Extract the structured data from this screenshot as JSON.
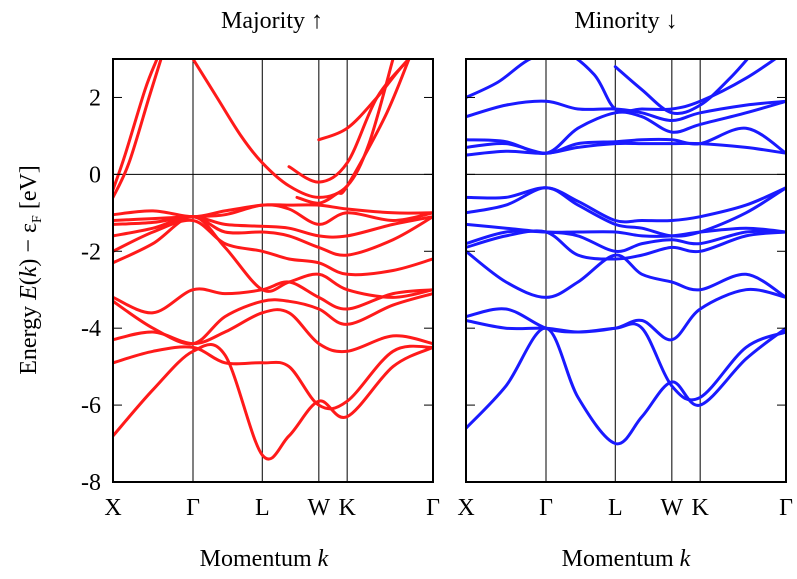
{
  "colors": {
    "majority": "#ff1a1a",
    "minority": "#1a1aff",
    "axis": "#000000",
    "grid": "#000000"
  },
  "chart_data": [
    {
      "type": "line",
      "title": "Majority ↑",
      "ylabel_parts": {
        "pre": "Energy ",
        "e": "E",
        "open": "(",
        "k": "k",
        "close": ")",
        "minus": " − ε",
        "sub": "F",
        "unit": " [eV]"
      },
      "xlabel_parts": {
        "text": "Momentum ",
        "k": "k"
      },
      "ylim": [
        -8,
        3
      ],
      "yticks": [
        -8,
        -6,
        -4,
        -2,
        0,
        2
      ],
      "kpoints": [
        {
          "label": "X",
          "x": 0
        },
        {
          "label": "Γ",
          "x": 1
        },
        {
          "label": "L",
          "x": 1.866
        },
        {
          "label": "W",
          "x": 2.573
        },
        {
          "label": "K",
          "x": 2.927
        },
        {
          "label": "Γ",
          "x": 4
        }
      ],
      "color": "#ff1a1a",
      "series": [
        {
          "x": [
            0,
            0.5,
            1,
            1.4,
            1.866,
            2.2,
            2.573,
            2.927,
            3.5,
            4
          ],
          "values": [
            -6.8,
            -5.6,
            -4.6,
            -4.7,
            -7.3,
            -6.8,
            -5.9,
            -6.3,
            -5.0,
            -4.5
          ]
        },
        {
          "x": [
            0,
            0.5,
            1,
            1.4,
            1.866,
            2.2,
            2.573,
            2.927,
            3.5,
            4
          ],
          "values": [
            -4.9,
            -4.6,
            -4.5,
            -4.9,
            -4.9,
            -5.0,
            -6.0,
            -5.9,
            -4.6,
            -4.5
          ]
        },
        {
          "x": [
            0,
            0.5,
            1,
            1.4,
            1.866,
            2.2,
            2.573,
            2.927,
            3.5,
            4
          ],
          "values": [
            -4.3,
            -4.1,
            -4.4,
            -4.1,
            -3.6,
            -3.6,
            -4.4,
            -4.6,
            -4.2,
            -4.4
          ]
        },
        {
          "x": [
            0,
            0.5,
            1,
            1.4,
            1.866,
            2.2,
            2.573,
            2.927,
            3.5,
            4
          ],
          "values": [
            -3.3,
            -4.0,
            -4.4,
            -3.7,
            -3.3,
            -3.3,
            -3.5,
            -3.9,
            -3.4,
            -3.1
          ]
        },
        {
          "x": [
            0,
            0.5,
            1,
            1.4,
            1.866,
            2.2,
            2.573,
            2.927,
            3.5,
            4
          ],
          "values": [
            -3.2,
            -3.6,
            -3.0,
            -3.1,
            -3.0,
            -2.8,
            -3.2,
            -3.5,
            -3.1,
            -3.0
          ]
        },
        {
          "x": [
            0,
            0.5,
            1,
            1.4,
            1.866,
            2.2,
            2.573,
            2.927,
            3.5,
            4
          ],
          "values": [
            -2.3,
            -1.8,
            -1.1,
            -1.9,
            -3.0,
            -2.8,
            -2.6,
            -3.0,
            -3.2,
            -3.0
          ]
        },
        {
          "x": [
            0,
            0.5,
            1,
            1.4,
            1.866,
            2.2,
            2.573,
            2.927,
            3.5,
            4
          ],
          "values": [
            -2.0,
            -1.5,
            -1.2,
            -1.8,
            -2.0,
            -2.2,
            -2.3,
            -2.6,
            -2.5,
            -2.2
          ]
        },
        {
          "x": [
            0,
            0.5,
            1,
            1.4,
            1.866,
            2.2,
            2.573,
            2.927,
            3.5,
            4
          ],
          "values": [
            -1.6,
            -1.4,
            -1.1,
            -1.5,
            -1.5,
            -1.6,
            -1.9,
            -2.1,
            -1.7,
            -1.1
          ]
        },
        {
          "x": [
            0,
            0.5,
            1,
            1.4,
            1.866,
            2.2,
            2.573,
            2.927,
            3.5,
            4
          ],
          "values": [
            -1.3,
            -1.25,
            -1.1,
            -1.3,
            -1.35,
            -1.4,
            -1.6,
            -1.6,
            -1.3,
            -1.1
          ]
        },
        {
          "x": [
            0,
            0.5,
            1,
            1.4,
            1.866,
            2.2,
            2.573,
            2.927,
            3.5,
            4
          ],
          "values": [
            -1.2,
            -1.15,
            -1.1,
            -1.05,
            -0.8,
            -0.9,
            -1.3,
            -1.0,
            -1.2,
            -1.0
          ]
        },
        {
          "x": [
            0,
            0.5,
            1,
            1.4,
            1.866,
            2.2,
            2.573,
            2.927,
            3.5,
            4
          ],
          "values": [
            -1.05,
            -0.95,
            -1.1,
            -0.95,
            -0.8,
            -0.8,
            -0.8,
            -0.9,
            -1.0,
            -1.0
          ]
        },
        {
          "x": [
            0,
            0.2,
            0.45,
            0.6,
            0.65
          ],
          "values": [
            -0.6,
            0.3,
            2.0,
            3.0,
            3.3
          ]
        },
        {
          "x": [
            0,
            0.15,
            0.4,
            0.55,
            0.6
          ],
          "values": [
            -0.4,
            0.5,
            2.2,
            3.0,
            3.3
          ]
        },
        {
          "x": [
            1,
            1.3,
            1.6,
            1.866,
            2.2,
            2.573,
            2.927,
            3.2,
            3.5
          ],
          "values": [
            3.0,
            2.0,
            1.0,
            0.3,
            -0.3,
            -0.6,
            -0.3,
            0.8,
            3.0
          ]
        },
        {
          "x": [
            2.2,
            2.573,
            2.927,
            3.3,
            3.7
          ],
          "values": [
            0.2,
            -0.2,
            0.3,
            2.0,
            3.0
          ]
        },
        {
          "x": [
            2.3,
            2.573,
            2.8,
            2.927,
            3.4,
            3.7
          ],
          "values": [
            -0.6,
            -0.75,
            -0.5,
            -0.3,
            1.5,
            3.0
          ]
        },
        {
          "x": [
            2.573,
            2.927,
            3.3,
            3.7,
            4
          ],
          "values": [
            0.9,
            1.2,
            2.0,
            3.0,
            3.3
          ]
        }
      ]
    },
    {
      "type": "line",
      "title": "Minority ↓",
      "xlabel_parts": {
        "text": "Momentum ",
        "k": "k"
      },
      "ylim": [
        -8,
        3
      ],
      "kpoints": [
        {
          "label": "X",
          "x": 0
        },
        {
          "label": "Γ",
          "x": 1
        },
        {
          "label": "L",
          "x": 1.866
        },
        {
          "label": "W",
          "x": 2.573
        },
        {
          "label": "K",
          "x": 2.927
        },
        {
          "label": "Γ",
          "x": 4
        }
      ],
      "color": "#1a1aff",
      "series": [
        {
          "x": [
            0,
            0.5,
            1,
            1.4,
            1.866,
            2.2,
            2.573,
            2.927,
            3.5,
            4
          ],
          "values": [
            -6.6,
            -5.5,
            -4.0,
            -5.8,
            -7.0,
            -6.3,
            -5.4,
            -6.0,
            -4.8,
            -4.0
          ]
        },
        {
          "x": [
            0,
            0.5,
            1,
            1.4,
            1.866,
            2.2,
            2.573,
            2.927,
            3.5,
            4
          ],
          "values": [
            -3.8,
            -4.0,
            -4.0,
            -4.1,
            -4.0,
            -4.0,
            -5.5,
            -5.8,
            -4.5,
            -4.1
          ]
        },
        {
          "x": [
            0,
            0.5,
            1,
            1.4,
            1.866,
            2.2,
            2.573,
            2.927,
            3.5,
            4
          ],
          "values": [
            -3.7,
            -3.5,
            -4.0,
            -4.1,
            -4.0,
            -3.8,
            -4.3,
            -3.5,
            -3.0,
            -3.2
          ]
        },
        {
          "x": [
            0,
            0.5,
            1,
            1.4,
            1.866,
            2.2,
            2.573,
            2.927,
            3.5,
            4
          ],
          "values": [
            -2.0,
            -2.8,
            -3.2,
            -2.8,
            -2.1,
            -2.6,
            -2.8,
            -3.0,
            -2.6,
            -3.2
          ]
        },
        {
          "x": [
            0,
            0.5,
            1,
            1.4,
            1.866,
            2.2,
            2.573,
            2.927,
            3.5,
            4
          ],
          "values": [
            -1.9,
            -1.6,
            -1.5,
            -2.1,
            -2.2,
            -2.1,
            -1.9,
            -2.0,
            -1.6,
            -1.5
          ]
        },
        {
          "x": [
            0,
            0.5,
            1,
            1.4,
            1.866,
            2.2,
            2.573,
            2.927,
            3.5,
            4
          ],
          "values": [
            -1.8,
            -1.5,
            -1.5,
            -1.6,
            -2.0,
            -1.8,
            -1.7,
            -1.8,
            -1.5,
            -1.5
          ]
        },
        {
          "x": [
            0,
            0.5,
            1,
            1.4,
            1.866,
            2.2,
            2.573,
            2.927,
            3.5,
            4
          ],
          "values": [
            -1.3,
            -1.4,
            -1.5,
            -1.5,
            -1.5,
            -1.6,
            -1.6,
            -1.5,
            -1.4,
            -1.5
          ]
        },
        {
          "x": [
            0,
            0.5,
            1,
            1.4,
            1.866,
            2.2,
            2.573,
            2.927,
            3.5,
            4
          ],
          "values": [
            -1.0,
            -0.8,
            -0.35,
            -0.8,
            -1.3,
            -1.4,
            -1.6,
            -1.5,
            -1.0,
            -0.35
          ]
        },
        {
          "x": [
            0,
            0.5,
            1,
            1.4,
            1.866,
            2.2,
            2.573,
            2.927,
            3.5,
            4
          ],
          "values": [
            -0.6,
            -0.6,
            -0.35,
            -0.7,
            -1.2,
            -1.2,
            -1.2,
            -1.1,
            -0.8,
            -0.35
          ]
        },
        {
          "x": [
            0,
            0.5,
            1,
            1.4,
            1.866,
            2.2,
            2.573,
            2.927,
            3.5,
            4
          ],
          "values": [
            0.5,
            0.6,
            0.55,
            0.7,
            0.8,
            0.8,
            0.8,
            0.8,
            0.7,
            0.55
          ]
        },
        {
          "x": [
            0,
            0.5,
            1,
            1.4,
            1.866,
            2.2,
            2.573,
            2.927,
            3.5,
            4
          ],
          "values": [
            0.7,
            0.8,
            0.55,
            0.8,
            0.85,
            0.9,
            0.9,
            0.8,
            1.2,
            0.55
          ]
        },
        {
          "x": [
            0,
            0.5,
            1,
            1.4,
            1.866,
            2.2,
            2.573,
            2.927,
            3.5,
            4
          ],
          "values": [
            0.9,
            0.85,
            0.55,
            1.2,
            1.6,
            1.5,
            1.1,
            1.3,
            1.6,
            1.9
          ]
        },
        {
          "x": [
            0,
            0.5,
            1,
            1.4,
            1.866,
            2.2,
            2.573,
            2.927,
            3.5,
            4
          ],
          "values": [
            1.5,
            1.8,
            1.9,
            1.7,
            1.7,
            1.6,
            1.4,
            1.6,
            1.8,
            1.9
          ]
        },
        {
          "x": [
            0,
            0.4,
            0.8,
            1.2,
            1.6,
            1.866,
            2.2,
            2.573,
            2.927,
            3.5,
            4
          ],
          "values": [
            2.0,
            2.4,
            3.0,
            3.2,
            2.6,
            1.7,
            1.7,
            1.7,
            1.9,
            2.5,
            3.2
          ]
        },
        {
          "x": [
            1.866,
            2.2,
            2.573,
            2.927,
            3.3,
            3.6
          ],
          "values": [
            2.8,
            2.2,
            1.6,
            1.8,
            2.5,
            3.2
          ]
        }
      ]
    }
  ]
}
